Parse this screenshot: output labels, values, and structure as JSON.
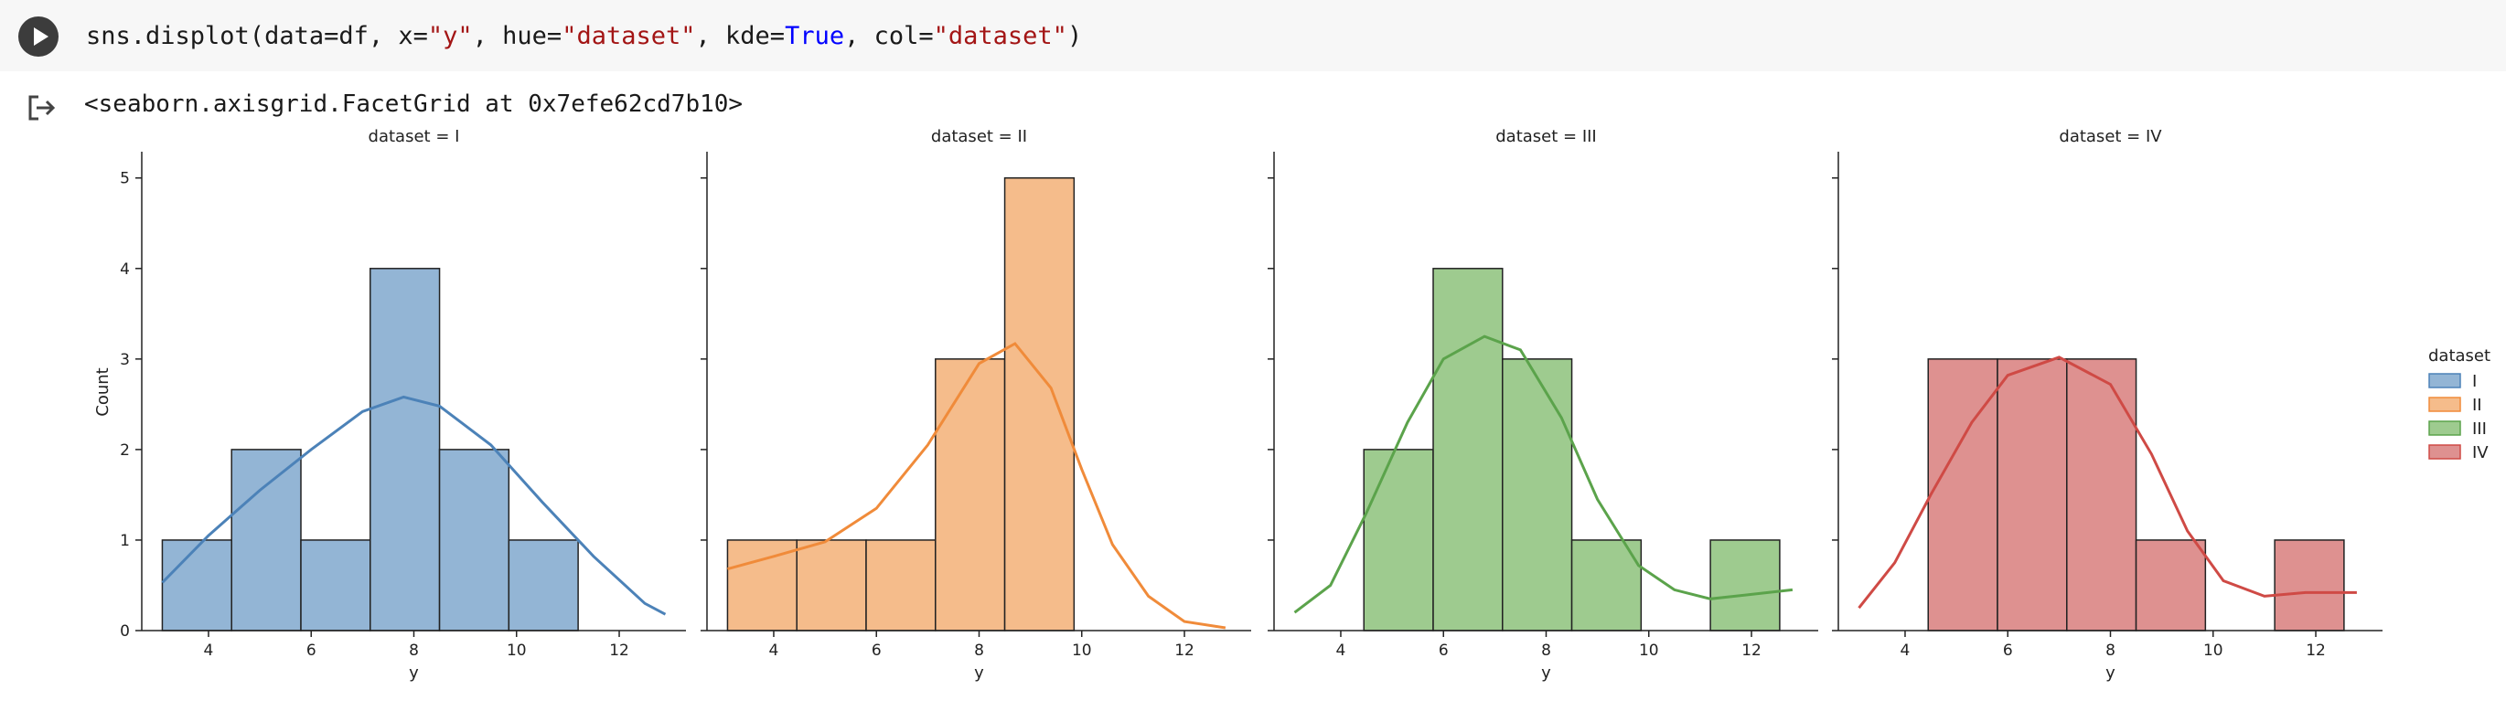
{
  "cell": {
    "code_parts": [
      {
        "text": "sns.displot(data=df, x=",
        "kind": "plain"
      },
      {
        "text": "\"y\"",
        "kind": "str"
      },
      {
        "text": ", hue=",
        "kind": "plain"
      },
      {
        "text": "\"dataset\"",
        "kind": "str"
      },
      {
        "text": ", kde=",
        "kind": "plain"
      },
      {
        "text": "True",
        "kind": "kw"
      },
      {
        "text": ", col=",
        "kind": "plain"
      },
      {
        "text": "\"dataset\"",
        "kind": "str"
      },
      {
        "text": ")",
        "kind": "plain"
      }
    ]
  },
  "output": {
    "repr": "<seaborn.axisgrid.FacetGrid at 0x7efe62cd7b10>"
  },
  "chart_data": {
    "type": "bar",
    "subtype": "histogram-with-kde",
    "ylabel": "Count",
    "xlabel": "y",
    "xlim": [
      2.7,
      13.3
    ],
    "ylim": [
      0,
      5.27
    ],
    "xticks": [
      4,
      6,
      8,
      10,
      12
    ],
    "yticks": [
      0,
      1,
      2,
      3,
      4,
      5
    ],
    "bins": [
      3.1,
      4.45,
      5.8,
      7.15,
      8.5,
      9.85,
      11.2,
      12.55
    ],
    "legend": {
      "title": "dataset",
      "entries": [
        "I",
        "II",
        "III",
        "IV"
      ],
      "placement": "right"
    },
    "panels": [
      {
        "title": "dataset = I",
        "series": "I",
        "color": "#4c82b8",
        "fill": "#93b5d5",
        "counts": [
          1,
          2,
          1,
          4,
          2,
          1,
          0
        ],
        "kde": [
          [
            3.1,
            0.53
          ],
          [
            4.0,
            1.05
          ],
          [
            5.0,
            1.55
          ],
          [
            6.0,
            2.0
          ],
          [
            7.0,
            2.42
          ],
          [
            7.8,
            2.58
          ],
          [
            8.5,
            2.48
          ],
          [
            9.5,
            2.05
          ],
          [
            10.5,
            1.42
          ],
          [
            11.5,
            0.82
          ],
          [
            12.5,
            0.3
          ],
          [
            12.9,
            0.18
          ]
        ]
      },
      {
        "title": "dataset = II",
        "series": "II",
        "color": "#f08b3a",
        "fill": "#f5bc8b",
        "counts": [
          1,
          1,
          1,
          3,
          5,
          0,
          0
        ],
        "kde": [
          [
            3.1,
            0.68
          ],
          [
            4.0,
            0.82
          ],
          [
            5.0,
            0.98
          ],
          [
            6.0,
            1.35
          ],
          [
            7.0,
            2.05
          ],
          [
            8.0,
            2.95
          ],
          [
            8.7,
            3.17
          ],
          [
            9.4,
            2.68
          ],
          [
            10.0,
            1.78
          ],
          [
            10.6,
            0.95
          ],
          [
            11.3,
            0.38
          ],
          [
            12.0,
            0.1
          ],
          [
            12.8,
            0.03
          ]
        ]
      },
      {
        "title": "dataset = III",
        "series": "III",
        "color": "#5ba34b",
        "fill": "#9ecb8f",
        "counts": [
          0,
          2,
          4,
          3,
          1,
          0,
          1
        ],
        "kde": [
          [
            3.1,
            0.2
          ],
          [
            3.8,
            0.5
          ],
          [
            4.5,
            1.3
          ],
          [
            5.3,
            2.3
          ],
          [
            6.0,
            3.0
          ],
          [
            6.8,
            3.25
          ],
          [
            7.5,
            3.1
          ],
          [
            8.3,
            2.35
          ],
          [
            9.0,
            1.45
          ],
          [
            9.8,
            0.72
          ],
          [
            10.5,
            0.45
          ],
          [
            11.2,
            0.35
          ],
          [
            12.0,
            0.4
          ],
          [
            12.8,
            0.45
          ]
        ]
      },
      {
        "title": "dataset = IV",
        "series": "IV",
        "color": "#cf4a45",
        "fill": "#de9190",
        "counts": [
          0,
          3,
          3,
          3,
          1,
          0,
          1
        ],
        "kde": [
          [
            3.1,
            0.25
          ],
          [
            3.8,
            0.75
          ],
          [
            4.5,
            1.5
          ],
          [
            5.3,
            2.3
          ],
          [
            6.0,
            2.82
          ],
          [
            7.0,
            3.02
          ],
          [
            8.0,
            2.72
          ],
          [
            8.8,
            1.95
          ],
          [
            9.5,
            1.1
          ],
          [
            10.2,
            0.55
          ],
          [
            11.0,
            0.38
          ],
          [
            11.8,
            0.42
          ],
          [
            12.8,
            0.42
          ]
        ]
      }
    ]
  }
}
